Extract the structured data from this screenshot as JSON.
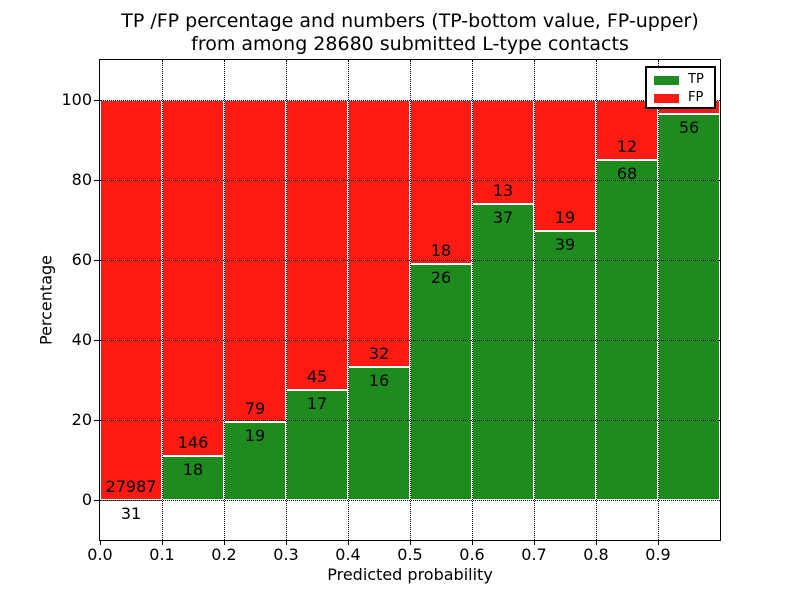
{
  "figure": {
    "title_line1": "TP /FP percentage and numbers (TP-bottom value, FP-upper)",
    "title_line2": "from among 28680 submitted L-type contacts"
  },
  "chart_data": {
    "type": "bar",
    "stacked": true,
    "normalized_to_percent": true,
    "title": "TP /FP percentage and numbers (TP-bottom value, FP-upper) from among 28680 submitted L-type contacts",
    "xlabel": "Predicted probability",
    "ylabel": "Percentage",
    "xlim": [
      0.0,
      1.0
    ],
    "ylim": [
      -10,
      110
    ],
    "x_ticks": [
      "0.0",
      "0.1",
      "0.2",
      "0.3",
      "0.4",
      "0.5",
      "0.6",
      "0.7",
      "0.8",
      "0.9"
    ],
    "y_ticks": [
      0,
      20,
      40,
      60,
      80,
      100
    ],
    "grid": "dotted",
    "total_submitted_contacts": 28680,
    "bin_width": 0.1,
    "categories": [
      "0.0-0.1",
      "0.1-0.2",
      "0.2-0.3",
      "0.3-0.4",
      "0.4-0.5",
      "0.5-0.6",
      "0.6-0.7",
      "0.7-0.8",
      "0.8-0.9",
      "0.9-1.0"
    ],
    "series": [
      {
        "name": "TP",
        "color": "#1e8b1e",
        "values": [
          31,
          18,
          19,
          17,
          16,
          26,
          37,
          39,
          68,
          56
        ]
      },
      {
        "name": "FP",
        "color": "#fd1a12",
        "values": [
          27987,
          146,
          79,
          45,
          32,
          18,
          13,
          19,
          12,
          null
        ]
      }
    ],
    "tp_percent": [
      0.11,
      10.98,
      19.39,
      27.42,
      33.33,
      59.09,
      74.0,
      67.24,
      85.0,
      96.55
    ],
    "legend": {
      "position": "upper-right",
      "entries": [
        {
          "label": "TP",
          "color": "#1e8b1e"
        },
        {
          "label": "FP",
          "color": "#fd1a12"
        }
      ]
    }
  }
}
